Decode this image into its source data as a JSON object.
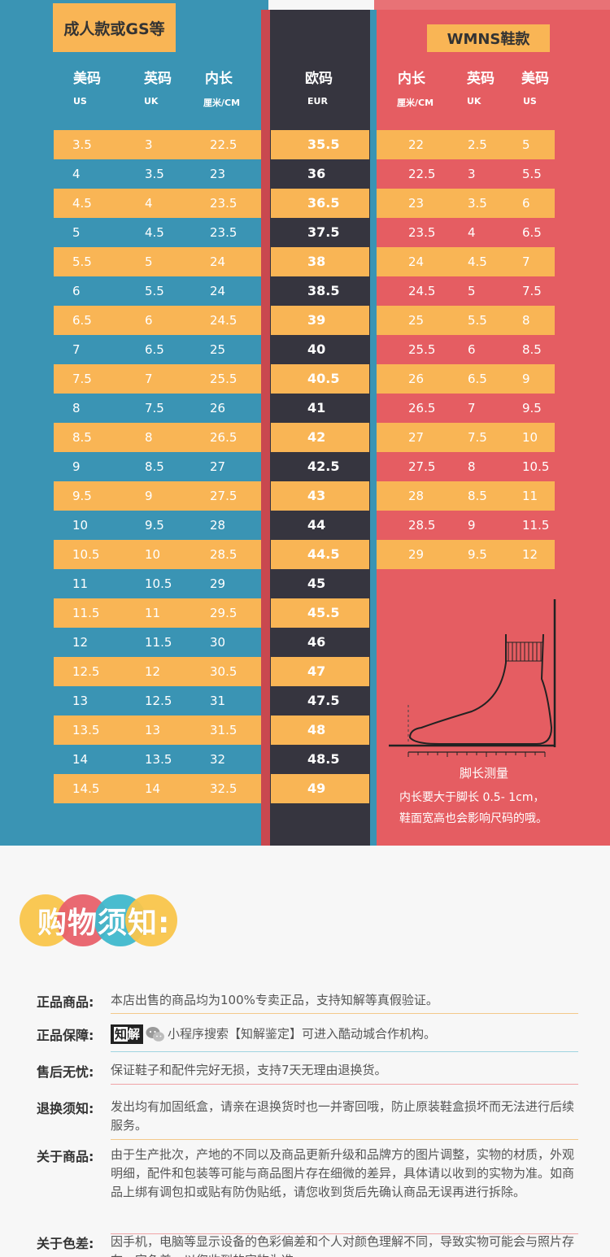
{
  "size_chart": {
    "left_tag": "成人款或GS等",
    "right_tag": "WMNS鞋款",
    "left_headers": [
      {
        "cn": "美码",
        "en": "US"
      },
      {
        "cn": "英码",
        "en": "UK"
      },
      {
        "cn": "内长",
        "en": "厘米/CM"
      }
    ],
    "eur_header": {
      "cn": "欧码",
      "en": "EUR"
    },
    "right_headers": [
      {
        "cn": "内长",
        "en": "厘米/CM"
      },
      {
        "cn": "英码",
        "en": "UK"
      },
      {
        "cn": "美码",
        "en": "US"
      }
    ],
    "mens_rows": [
      [
        "3.5",
        "3",
        "22.5",
        "35.5"
      ],
      [
        "4",
        "3.5",
        "23",
        "36"
      ],
      [
        "4.5",
        "4",
        "23.5",
        "36.5"
      ],
      [
        "5",
        "4.5",
        "23.5",
        "37.5"
      ],
      [
        "5.5",
        "5",
        "24",
        "38"
      ],
      [
        "6",
        "5.5",
        "24",
        "38.5"
      ],
      [
        "6.5",
        "6",
        "24.5",
        "39"
      ],
      [
        "7",
        "6.5",
        "25",
        "40"
      ],
      [
        "7.5",
        "7",
        "25.5",
        "40.5"
      ],
      [
        "8",
        "7.5",
        "26",
        "41"
      ],
      [
        "8.5",
        "8",
        "26.5",
        "42"
      ],
      [
        "9",
        "8.5",
        "27",
        "42.5"
      ],
      [
        "9.5",
        "9",
        "27.5",
        "43"
      ],
      [
        "10",
        "9.5",
        "28",
        "44"
      ],
      [
        "10.5",
        "10",
        "28.5",
        "44.5"
      ],
      [
        "11",
        "10.5",
        "29",
        "45"
      ],
      [
        "11.5",
        "11",
        "29.5",
        "45.5"
      ],
      [
        "12",
        "11.5",
        "30",
        "46"
      ],
      [
        "12.5",
        "12",
        "30.5",
        "47"
      ],
      [
        "13",
        "12.5",
        "31",
        "47.5"
      ],
      [
        "13.5",
        "13",
        "31.5",
        "48"
      ],
      [
        "14",
        "13.5",
        "32",
        "48.5"
      ],
      [
        "14.5",
        "14",
        "32.5",
        "49"
      ]
    ],
    "womens_rows": [
      [
        "22",
        "2.5",
        "5"
      ],
      [
        "22.5",
        "3",
        "5.5"
      ],
      [
        "23",
        "3.5",
        "6"
      ],
      [
        "23.5",
        "4",
        "6.5"
      ],
      [
        "24",
        "4.5",
        "7"
      ],
      [
        "24.5",
        "5",
        "7.5"
      ],
      [
        "25",
        "5.5",
        "8"
      ],
      [
        "25.5",
        "6",
        "8.5"
      ],
      [
        "26",
        "6.5",
        "9"
      ],
      [
        "26.5",
        "7",
        "9.5"
      ],
      [
        "27",
        "7.5",
        "10"
      ],
      [
        "27.5",
        "8",
        "10.5"
      ],
      [
        "28",
        "8.5",
        "11"
      ],
      [
        "28.5",
        "9",
        "11.5"
      ],
      [
        "29",
        "9.5",
        "12"
      ]
    ],
    "foot_title": "脚长测量",
    "foot_note_1": "内长要大于脚长 0.5- 1cm，",
    "foot_note_2": "鞋面宽高也会影响尺码的哦。"
  },
  "notice": {
    "title": "购物须知:",
    "colors": {
      "yellow": "#f9c54b",
      "red": "#e8616a",
      "cyan": "#3fb8cc"
    },
    "rows": [
      {
        "label": "正品商品:",
        "text": "本店出售的商品均为100%专卖正品，支持知解等真假验证。",
        "line": "#f3c98a"
      },
      {
        "label": "正品保障:",
        "logo": "知解",
        "text": "小程序搜索【知解鉴定】可进入酷动城合作机构。",
        "line": "#9fd4e0"
      },
      {
        "label": "售后无忧:",
        "text": "保证鞋子和配件完好无损，支持7天无理由退换货。",
        "line": "#f0a3a6"
      },
      {
        "label": "退换须知:",
        "text": "发出均有加固纸盒，请亲在退换货时也一并寄回哦，防止原装鞋盒损坏而无法进行后续服务。",
        "line": "#f3c98a"
      },
      {
        "label": "关于商品:",
        "text": "由于生产批次，产地的不同以及商品更新升级和品牌方的图片调整，实物的材质，外观明细，配件和包装等可能与商品图片存在细微的差异，具体请以收到的实物为准。如商品上绑有调包扣或贴有防伪贴纸，请您收到货后先确认商品无误再进行拆除。",
        "line": "#f0a3a6"
      },
      {
        "label": "关于色差:",
        "text": "因手机，电脑等显示设备的色彩偏差和个人对颜色理解不同，导致实物可能会与照片存在一定色差，以您收到的实物为准。",
        "line": ""
      }
    ]
  }
}
